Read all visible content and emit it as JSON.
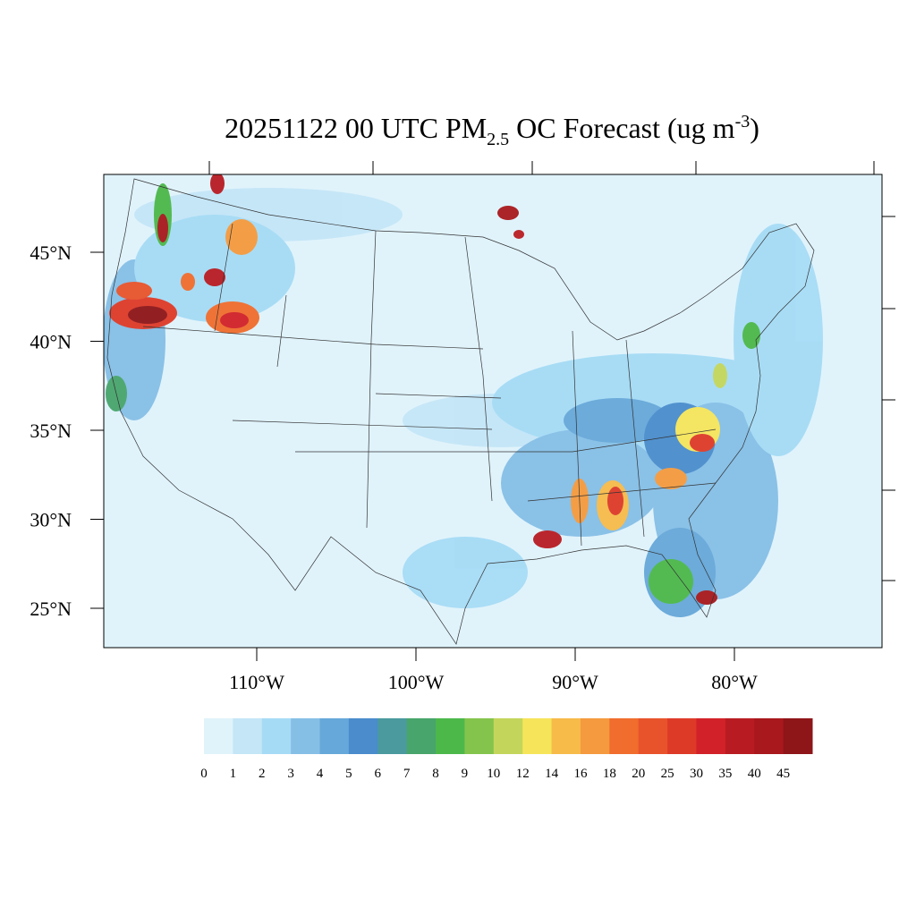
{
  "map": {
    "title": {
      "prefix": "20251122 00 UTC PM",
      "subscript": "2.5",
      "middle": " OC Forecast (ug m",
      "superscript": "-3",
      "suffix": ")"
    },
    "lat_ticks": [
      {
        "value": 45,
        "label": "45°N"
      },
      {
        "value": 40,
        "label": "40°N"
      },
      {
        "value": 35,
        "label": "35°N"
      },
      {
        "value": 30,
        "label": "30°N"
      },
      {
        "value": 25,
        "label": "25°N"
      }
    ],
    "lon_ticks": [
      {
        "value": 110,
        "label": "110°W"
      },
      {
        "value": 100,
        "label": "100°W"
      },
      {
        "value": 90,
        "label": "90°W"
      },
      {
        "value": 80,
        "label": "80°W"
      }
    ],
    "colorbar": {
      "levels": [
        0,
        1,
        2,
        3,
        4,
        5,
        6,
        7,
        8,
        9,
        10,
        12,
        14,
        16,
        18,
        20,
        25,
        30,
        35,
        40,
        45
      ],
      "colors": [
        "#e0f3fb",
        "#c4e6f7",
        "#a6dbf5",
        "#86bfe6",
        "#66a8d9",
        "#4a8ccc",
        "#4a9a9e",
        "#48a56b",
        "#4cb84a",
        "#84c44d",
        "#c3d65b",
        "#f6e55a",
        "#f7bb4a",
        "#f59a3e",
        "#f06d2d",
        "#e8532b",
        "#de3a28",
        "#d22128",
        "#b81c22",
        "#a8181c",
        "#8e1518"
      ]
    }
  }
}
